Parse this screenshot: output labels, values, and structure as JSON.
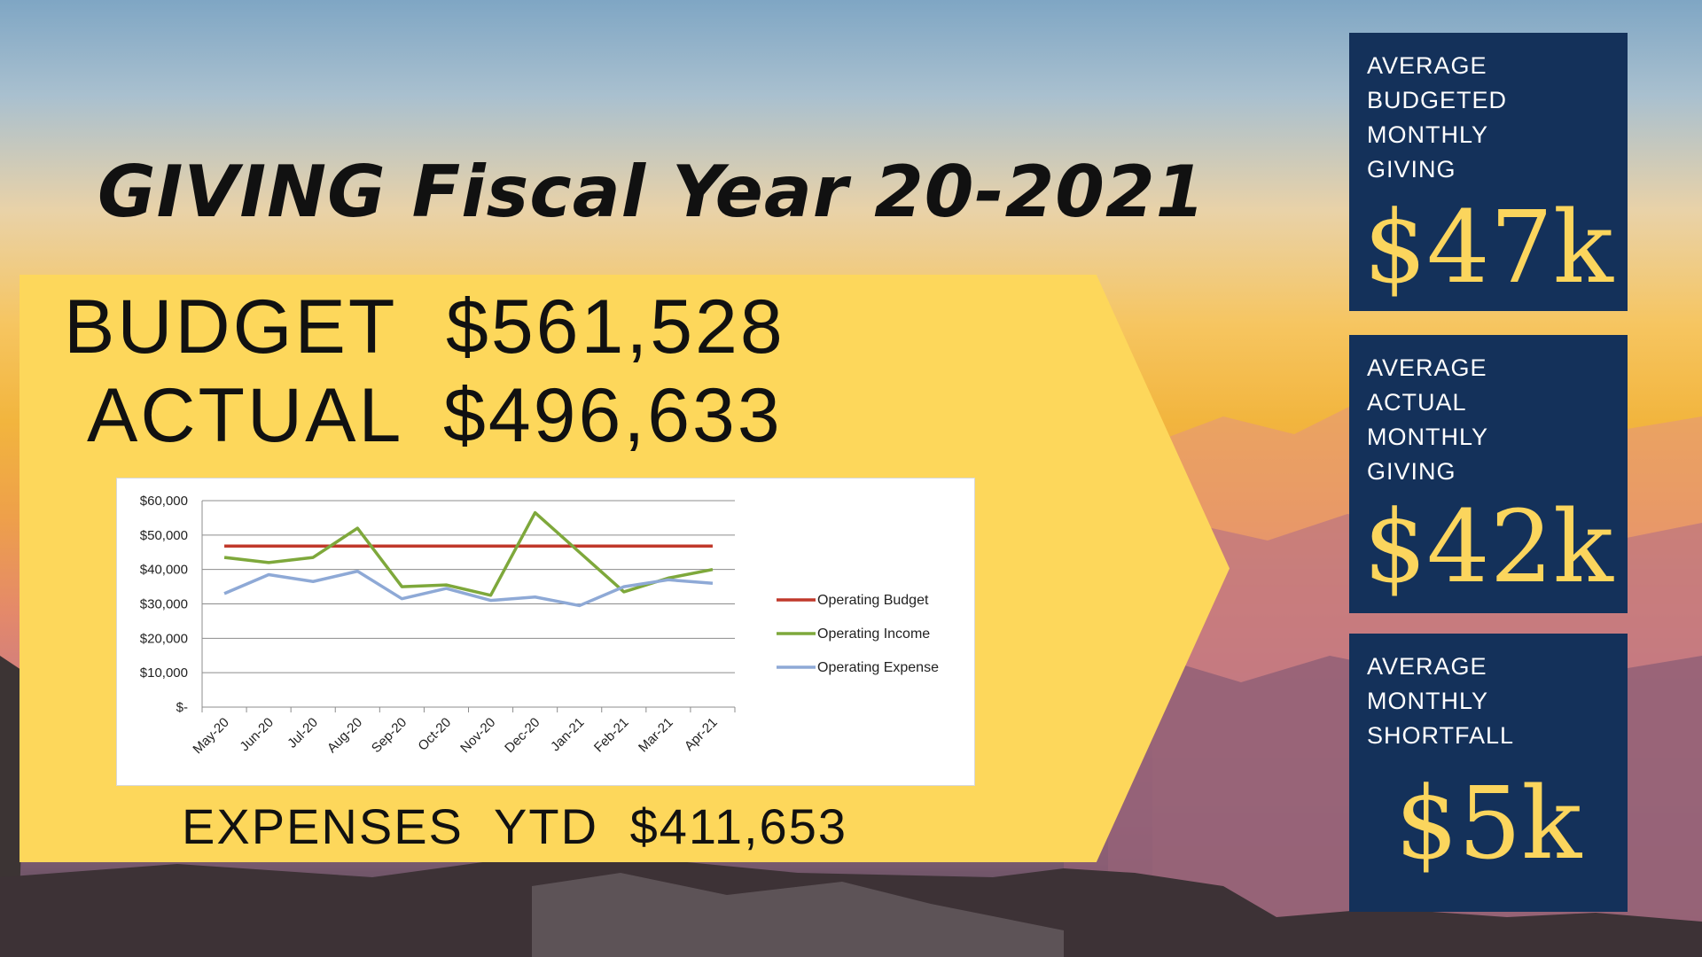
{
  "title": "GIVING Fiscal Year 20-2021",
  "budget": {
    "label": "BUDGET",
    "value": "$561,528"
  },
  "actual": {
    "label": "ACTUAL",
    "value": "$496,633"
  },
  "expenses": {
    "label": "EXPENSES  YTD",
    "value": "$411,653"
  },
  "cards": [
    {
      "lines": [
        "AVERAGE",
        "BUDGETED",
        "MONTHLY",
        "GIVING"
      ],
      "value": "$47k"
    },
    {
      "lines": [
        "AVERAGE",
        "ACTUAL",
        "MONTHLY",
        "GIVING"
      ],
      "value": "$42k"
    },
    {
      "lines": [
        "AVERAGE",
        "MONTHLY",
        "SHORTFALL"
      ],
      "value": "$5k"
    }
  ],
  "chart_data": {
    "type": "line",
    "categories": [
      "May-20",
      "Jun-20",
      "Jul-20",
      "Aug-20",
      "Sep-20",
      "Oct-20",
      "Nov-20",
      "Dec-20",
      "Jan-21",
      "Feb-21",
      "Mar-21",
      "Apr-21"
    ],
    "y_ticks": [
      "$60,000",
      "$50,000",
      "$40,000",
      "$30,000",
      "$20,000",
      "$10,000",
      "$-"
    ],
    "ylim": [
      0,
      60000
    ],
    "legend_position": "right",
    "series": [
      {
        "name": "Operating Budget",
        "color": "#c0392b",
        "values": [
          46794,
          46794,
          46794,
          46794,
          46794,
          46794,
          46794,
          46794,
          46794,
          46794,
          46794,
          46794
        ]
      },
      {
        "name": "Operating Income",
        "color": "#7ea83b",
        "values": [
          43500,
          42000,
          43500,
          52000,
          35000,
          35500,
          32500,
          56500,
          45000,
          33500,
          37500,
          40000
        ]
      },
      {
        "name": "Operating Expense",
        "color": "#8ea9d6",
        "values": [
          33000,
          38500,
          36500,
          39500,
          31500,
          34500,
          31000,
          32000,
          29500,
          35000,
          37000,
          36000
        ]
      }
    ]
  }
}
